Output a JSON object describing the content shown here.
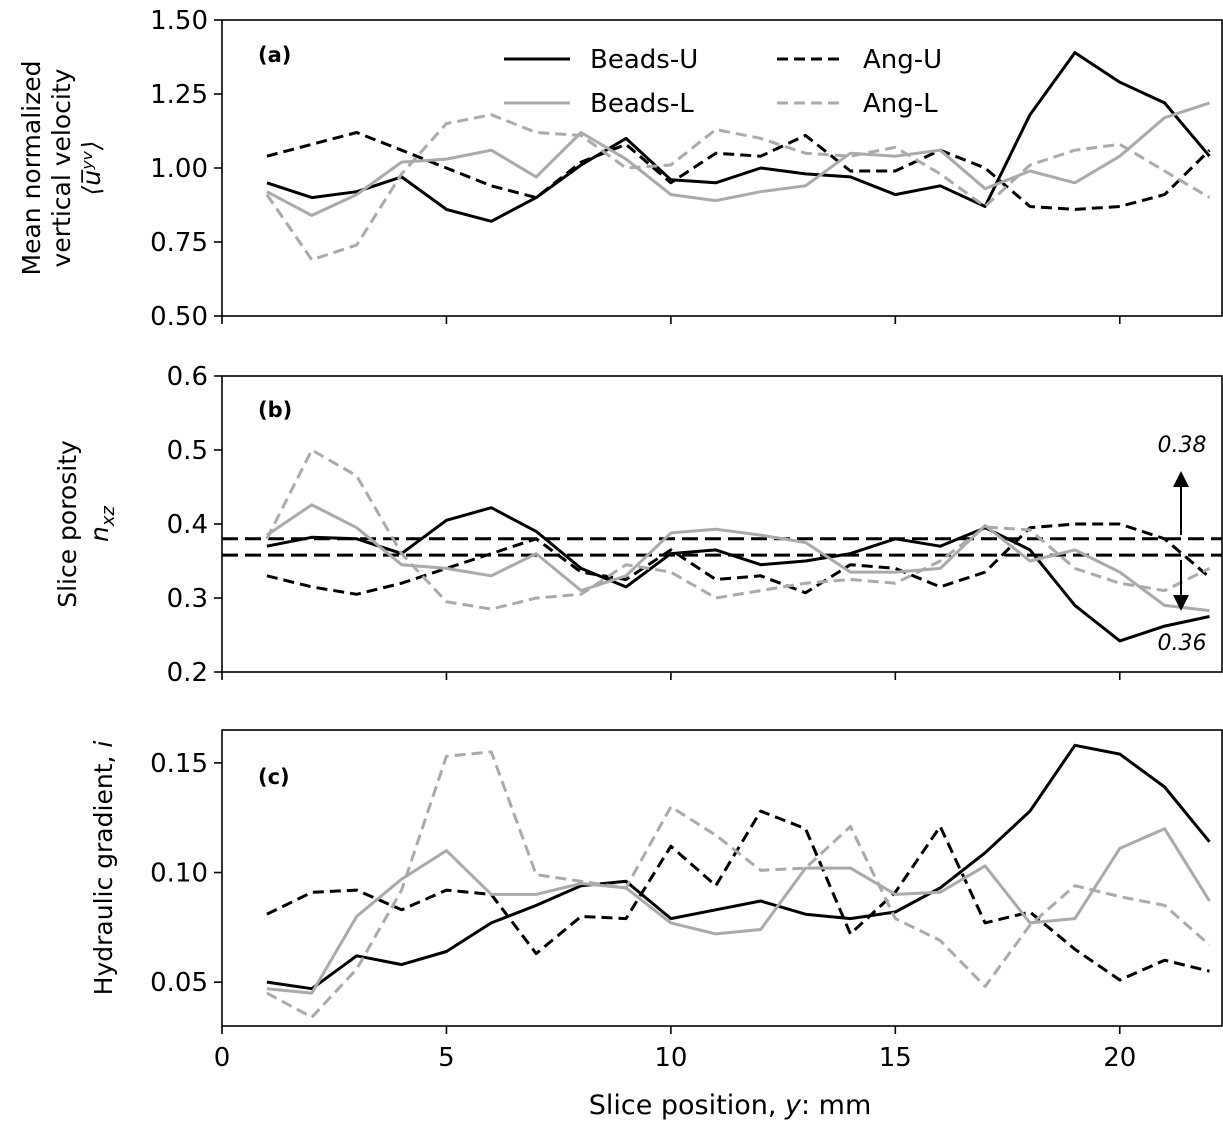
{
  "figure": {
    "xlabel_prefix": "Slice position, ",
    "xlabel_var": "y",
    "xlabel_suffix": ": mm",
    "xticks": [
      0,
      5,
      10,
      15,
      20
    ],
    "xlim": [
      0,
      22.3
    ]
  },
  "legend": {
    "entries": [
      {
        "label": "Beads-U",
        "color": "#000000",
        "dash": false
      },
      {
        "label": "Ang-U",
        "color": "#000000",
        "dash": true
      },
      {
        "label": "Beads-L",
        "color": "#aaaaaa",
        "dash": false
      },
      {
        "label": "Ang-L",
        "color": "#aaaaaa",
        "dash": true
      }
    ]
  },
  "chart_data": [
    {
      "type": "line",
      "panel": "(a)",
      "ylabel_line1": "Mean normalized",
      "ylabel_line2": "vertical velocity",
      "ylabel_line3": "⟨u̅ʸᵛ⟩",
      "ylim": [
        0.5,
        1.5
      ],
      "yticks": [
        "0.50",
        "0.75",
        "1.00",
        "1.25",
        "1.50"
      ],
      "series": [
        {
          "name": "Beads-U",
          "x": [
            1,
            2,
            3,
            4,
            5,
            6,
            7,
            8,
            9,
            10,
            11,
            12,
            13,
            14,
            15,
            16,
            17,
            18,
            19,
            20,
            21,
            22
          ],
          "y": [
            0.95,
            0.9,
            0.92,
            0.97,
            0.86,
            0.82,
            0.9,
            1.01,
            1.1,
            0.96,
            0.95,
            1.0,
            0.98,
            0.97,
            0.91,
            0.94,
            0.87,
            1.18,
            1.39,
            1.29,
            1.22,
            1.04
          ]
        },
        {
          "name": "Ang-U",
          "x": [
            1,
            2,
            3,
            4,
            5,
            6,
            7,
            8,
            9,
            10,
            11,
            12,
            13,
            14,
            15,
            16,
            17,
            18,
            19,
            20,
            21,
            22
          ],
          "y": [
            1.04,
            1.08,
            1.12,
            1.06,
            1.0,
            0.94,
            0.9,
            1.02,
            1.08,
            0.95,
            1.05,
            1.04,
            1.11,
            0.99,
            0.99,
            1.06,
            1.0,
            0.87,
            0.86,
            0.87,
            0.91,
            1.06
          ]
        },
        {
          "name": "Beads-L",
          "x": [
            1,
            2,
            3,
            4,
            5,
            6,
            7,
            8,
            9,
            10,
            11,
            12,
            13,
            14,
            15,
            16,
            17,
            18,
            19,
            20,
            21,
            22
          ],
          "y": [
            0.92,
            0.84,
            0.91,
            1.02,
            1.03,
            1.06,
            0.97,
            1.12,
            1.03,
            0.91,
            0.89,
            0.92,
            0.94,
            1.05,
            1.04,
            1.06,
            0.93,
            0.99,
            0.95,
            1.04,
            1.17,
            1.22
          ]
        },
        {
          "name": "Ang-L",
          "x": [
            1,
            2,
            3,
            4,
            5,
            6,
            7,
            8,
            9,
            10,
            11,
            12,
            13,
            14,
            15,
            16,
            17,
            18,
            19,
            20,
            21,
            22
          ],
          "y": [
            0.91,
            0.69,
            0.74,
            0.98,
            1.15,
            1.18,
            1.12,
            1.11,
            1.0,
            1.01,
            1.13,
            1.1,
            1.05,
            1.04,
            1.07,
            0.98,
            0.87,
            1.01,
            1.06,
            1.08,
            0.99,
            0.9
          ]
        }
      ]
    },
    {
      "type": "line",
      "panel": "(b)",
      "ylabel_line1": "Slice porosity",
      "ylabel_line2": "n",
      "ylabel_sub": "xz",
      "ylim": [
        0.2,
        0.6
      ],
      "yticks": [
        "0.2",
        "0.3",
        "0.4",
        "0.5",
        "0.6"
      ],
      "hlines": [
        0.38,
        0.358
      ],
      "annotation_top": "0.38",
      "annotation_bottom": "0.36",
      "series": [
        {
          "name": "Beads-U",
          "x": [
            1,
            2,
            3,
            4,
            5,
            6,
            7,
            8,
            9,
            10,
            11,
            12,
            13,
            14,
            15,
            16,
            17,
            18,
            19,
            20,
            21,
            22
          ],
          "y": [
            0.37,
            0.382,
            0.38,
            0.36,
            0.405,
            0.422,
            0.39,
            0.34,
            0.315,
            0.36,
            0.365,
            0.345,
            0.35,
            0.36,
            0.38,
            0.37,
            0.395,
            0.365,
            0.29,
            0.242,
            0.262,
            0.275
          ]
        },
        {
          "name": "Ang-U",
          "x": [
            1,
            2,
            3,
            4,
            5,
            6,
            7,
            8,
            9,
            10,
            11,
            12,
            13,
            14,
            15,
            16,
            17,
            18,
            19,
            20,
            21,
            22
          ],
          "y": [
            0.33,
            0.315,
            0.305,
            0.32,
            0.34,
            0.36,
            0.38,
            0.335,
            0.325,
            0.365,
            0.325,
            0.33,
            0.307,
            0.345,
            0.34,
            0.315,
            0.335,
            0.395,
            0.4,
            0.4,
            0.38,
            0.328
          ]
        },
        {
          "name": "Beads-L",
          "x": [
            1,
            2,
            3,
            4,
            5,
            6,
            7,
            8,
            9,
            10,
            11,
            12,
            13,
            14,
            15,
            16,
            17,
            18,
            19,
            20,
            21,
            22
          ],
          "y": [
            0.385,
            0.426,
            0.395,
            0.345,
            0.34,
            0.33,
            0.36,
            0.31,
            0.33,
            0.388,
            0.393,
            0.385,
            0.375,
            0.335,
            0.335,
            0.34,
            0.398,
            0.35,
            0.365,
            0.335,
            0.29,
            0.283
          ]
        },
        {
          "name": "Ang-L",
          "x": [
            1,
            2,
            3,
            4,
            5,
            6,
            7,
            8,
            9,
            10,
            11,
            12,
            13,
            14,
            15,
            16,
            17,
            18,
            19,
            20,
            21,
            22
          ],
          "y": [
            0.38,
            0.5,
            0.465,
            0.36,
            0.295,
            0.285,
            0.3,
            0.305,
            0.345,
            0.335,
            0.3,
            0.31,
            0.32,
            0.325,
            0.32,
            0.35,
            0.396,
            0.392,
            0.34,
            0.32,
            0.31,
            0.34
          ]
        }
      ]
    },
    {
      "type": "line",
      "panel": "(c)",
      "ylabel_prefix": "Hydraulic gradient, ",
      "ylabel_var": "i",
      "ylim": [
        0.03,
        0.165
      ],
      "yticks": [
        "0.05",
        "0.10",
        "0.15"
      ],
      "series": [
        {
          "name": "Beads-U",
          "x": [
            1,
            2,
            3,
            4,
            5,
            6,
            7,
            8,
            9,
            10,
            11,
            12,
            13,
            14,
            15,
            16,
            17,
            18,
            19,
            20,
            21,
            22
          ],
          "y": [
            0.05,
            0.047,
            0.062,
            0.058,
            0.064,
            0.077,
            0.085,
            0.094,
            0.096,
            0.079,
            0.083,
            0.087,
            0.081,
            0.079,
            0.082,
            0.093,
            0.109,
            0.128,
            0.158,
            0.154,
            0.139,
            0.114
          ]
        },
        {
          "name": "Ang-U",
          "x": [
            1,
            2,
            3,
            4,
            5,
            6,
            7,
            8,
            9,
            10,
            11,
            12,
            13,
            14,
            15,
            16,
            17,
            18,
            19,
            20,
            21,
            22
          ],
          "y": [
            0.081,
            0.091,
            0.092,
            0.083,
            0.092,
            0.09,
            0.063,
            0.08,
            0.079,
            0.112,
            0.094,
            0.128,
            0.12,
            0.072,
            0.091,
            0.121,
            0.077,
            0.082,
            0.065,
            0.051,
            0.06,
            0.055
          ]
        },
        {
          "name": "Beads-L",
          "x": [
            1,
            2,
            3,
            4,
            5,
            6,
            7,
            8,
            9,
            10,
            11,
            12,
            13,
            14,
            15,
            16,
            17,
            18,
            19,
            20,
            21,
            22
          ],
          "y": [
            0.047,
            0.045,
            0.08,
            0.097,
            0.11,
            0.09,
            0.09,
            0.095,
            0.093,
            0.077,
            0.072,
            0.074,
            0.102,
            0.102,
            0.09,
            0.091,
            0.103,
            0.077,
            0.079,
            0.111,
            0.12,
            0.087
          ]
        },
        {
          "name": "Ang-L",
          "x": [
            1,
            2,
            3,
            4,
            5,
            6,
            7,
            8,
            9,
            10,
            11,
            12,
            13,
            14,
            15,
            16,
            17,
            18,
            19,
            20,
            21,
            22
          ],
          "y": [
            0.045,
            0.034,
            0.056,
            0.092,
            0.153,
            0.155,
            0.099,
            0.096,
            0.093,
            0.13,
            0.117,
            0.101,
            0.102,
            0.121,
            0.079,
            0.069,
            0.048,
            0.076,
            0.094,
            0.089,
            0.085,
            0.067
          ]
        }
      ]
    }
  ]
}
